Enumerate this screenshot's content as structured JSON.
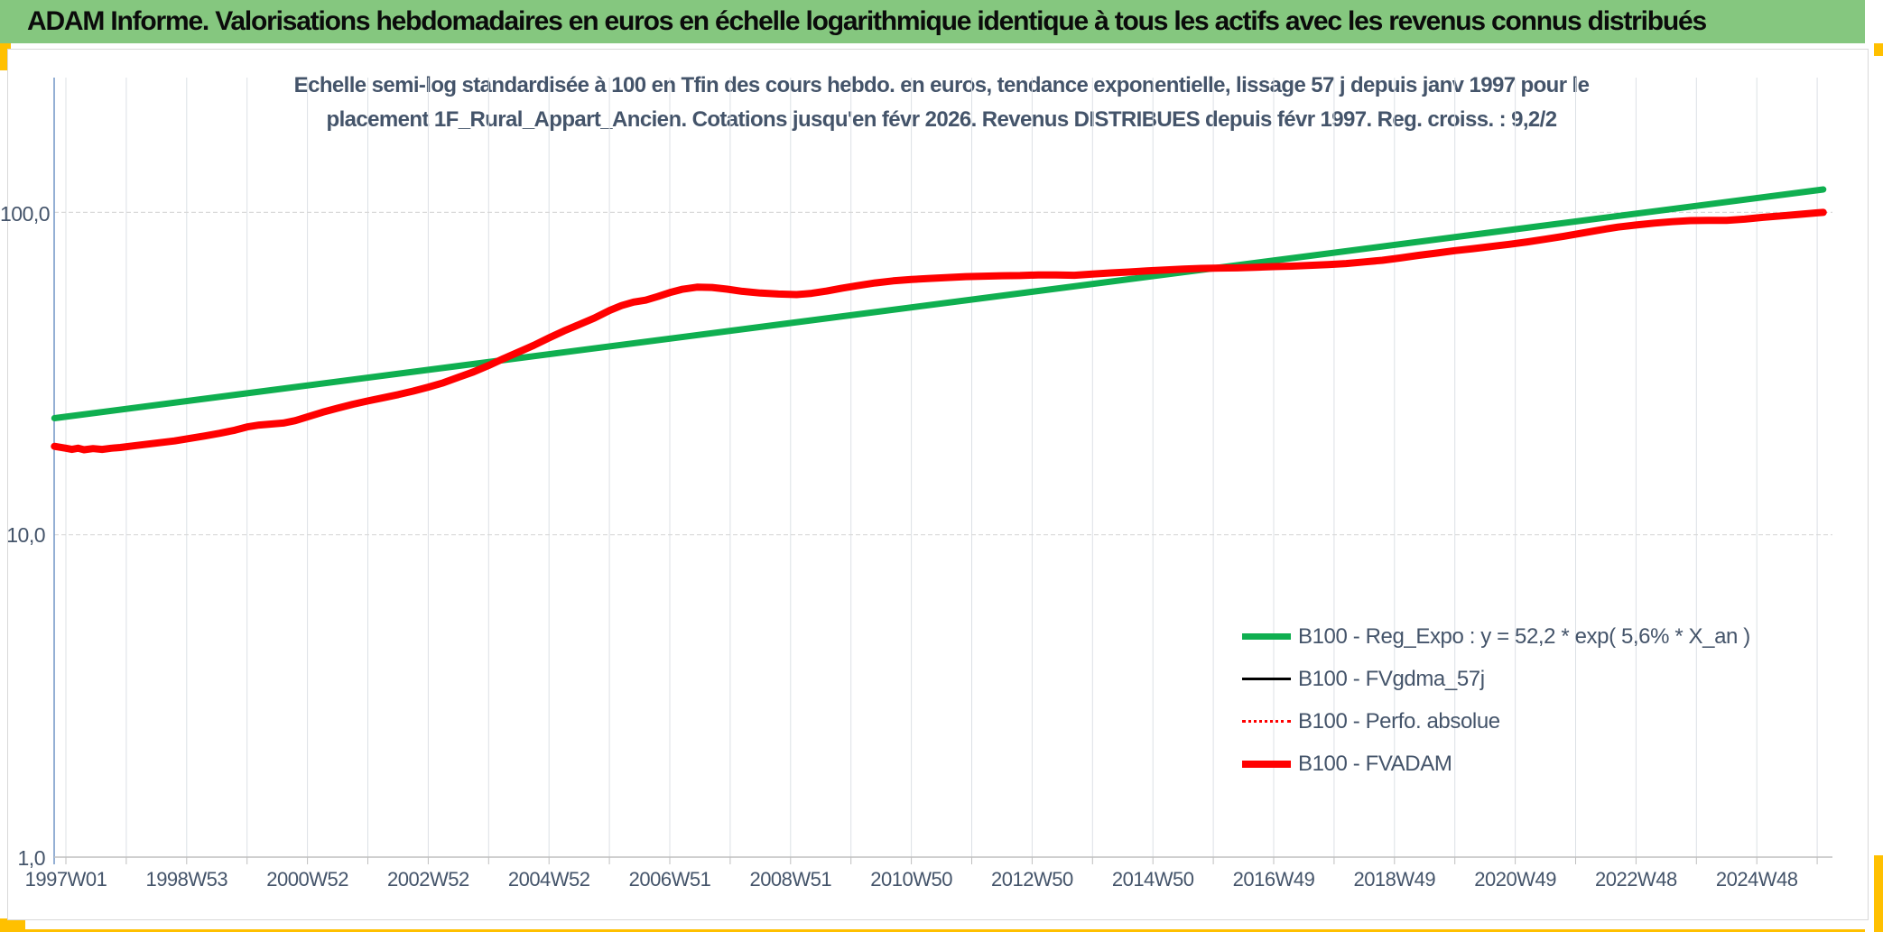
{
  "header": {
    "title": "ADAM Informe. Valorisations hebdomadaires en euros en échelle logarithmique identique à tous les actifs avec les revenus connus distribués"
  },
  "accents": {
    "header_green": "#85C77F",
    "corner_orange": "#FFC000",
    "text_blue_grey": "#44546A"
  },
  "chart": {
    "title_line1": "Echelle semi-log standardisée à 100 en Tfin des cours hebdo. en euros, tendance exponentielle, lissage 57 j depuis janv 1997 pour le",
    "title_line2": "placement 1F_Rural_Appart_Ancien. Cotations jusqu'en févr 2026. Revenus DISTRIBUES depuis févr 1997. Reg. croiss. : 9,2/2"
  },
  "chart_data": {
    "type": "line",
    "y_scale": "log",
    "ylim": [
      1.0,
      250
    ],
    "x_span_years": [
      1997.0,
      2026.2
    ],
    "grid": {
      "vertical_every_years": 1,
      "horizontal_at": [
        100,
        10
      ]
    },
    "legend_position": "inside-lower-right",
    "y_ticks": [
      {
        "label": "100,0",
        "value": 100
      },
      {
        "label": "10,0",
        "value": 10
      },
      {
        "label": "1,0",
        "value": 1
      }
    ],
    "x_tick_labels": [
      "1997W01",
      "1998W53",
      "2000W52",
      "2002W52",
      "2004W52",
      "2006W51",
      "2008W51",
      "2010W50",
      "2012W50",
      "2014W50",
      "2016W49",
      "2018W49",
      "2020W49",
      "2022W48",
      "2024W48"
    ],
    "legend": [
      {
        "label": "B100 - Reg_Expo : y = 52,2 * exp( 5,6% * X_an )",
        "color": "#0FAF50",
        "thickness": 7,
        "style": "solid"
      },
      {
        "label": "B100 - FVgdma_57j",
        "color": "#000000",
        "thickness": 3,
        "style": "solid"
      },
      {
        "label": "B100 - Perfo. absolue",
        "color": "#FF0000",
        "thickness": 3,
        "style": "dotted"
      },
      {
        "label": "B100 - FVADAM",
        "color": "#FF0000",
        "thickness": 8,
        "style": "solid"
      }
    ],
    "series": [
      {
        "name": "B100 - Reg_Expo",
        "color": "#0FAF50",
        "width": 7,
        "style": "solid",
        "formula": "y = 52,2 * exp( 5,6% * X_an )",
        "points": [
          [
            1996.81,
            23.0
          ],
          [
            2026.1,
            117.8
          ]
        ]
      },
      {
        "name": "B100 - FVgdma_57j",
        "color": "#000000",
        "width": 2.5,
        "style": "solid",
        "same_as": "B100 - FVADAM",
        "note": "hidden beneath FVADAM"
      },
      {
        "name": "B100 - Perfo. absolue",
        "color": "#FF0000",
        "width": 2,
        "style": "dotted",
        "same_as": "B100 - FVADAM",
        "note": "hidden beneath FVADAM"
      },
      {
        "name": "B100 - FVADAM",
        "color": "#FF0000",
        "width": 8,
        "style": "solid",
        "points": [
          [
            1996.81,
            18.8
          ],
          [
            1997.0,
            18.55
          ],
          [
            1997.1,
            18.4
          ],
          [
            1997.2,
            18.55
          ],
          [
            1997.3,
            18.35
          ],
          [
            1997.45,
            18.5
          ],
          [
            1997.6,
            18.4
          ],
          [
            1997.75,
            18.55
          ],
          [
            1997.9,
            18.65
          ],
          [
            1998.1,
            18.85
          ],
          [
            1998.3,
            19.05
          ],
          [
            1998.55,
            19.3
          ],
          [
            1998.8,
            19.55
          ],
          [
            1999.05,
            19.9
          ],
          [
            1999.3,
            20.25
          ],
          [
            1999.55,
            20.65
          ],
          [
            1999.8,
            21.1
          ],
          [
            2000.0,
            21.6
          ],
          [
            2000.2,
            21.9
          ],
          [
            2000.4,
            22.05
          ],
          [
            2000.6,
            22.2
          ],
          [
            2000.8,
            22.6
          ],
          [
            2001.0,
            23.2
          ],
          [
            2001.25,
            24.0
          ],
          [
            2001.5,
            24.7
          ],
          [
            2001.75,
            25.4
          ],
          [
            2002.0,
            26.0
          ],
          [
            2002.25,
            26.6
          ],
          [
            2002.5,
            27.2
          ],
          [
            2002.75,
            27.9
          ],
          [
            2003.0,
            28.7
          ],
          [
            2003.25,
            29.6
          ],
          [
            2003.5,
            30.8
          ],
          [
            2003.75,
            32.0
          ],
          [
            2004.0,
            33.5
          ],
          [
            2004.25,
            35.2
          ],
          [
            2004.5,
            36.9
          ],
          [
            2004.75,
            38.7
          ],
          [
            2005.0,
            40.8
          ],
          [
            2005.25,
            42.9
          ],
          [
            2005.5,
            44.9
          ],
          [
            2005.75,
            47.0
          ],
          [
            2006.0,
            49.6
          ],
          [
            2006.2,
            51.4
          ],
          [
            2006.4,
            52.7
          ],
          [
            2006.6,
            53.4
          ],
          [
            2006.8,
            54.8
          ],
          [
            2007.0,
            56.4
          ],
          [
            2007.2,
            57.7
          ],
          [
            2007.45,
            58.6
          ],
          [
            2007.7,
            58.5
          ],
          [
            2007.95,
            57.8
          ],
          [
            2008.2,
            56.9
          ],
          [
            2008.5,
            56.2
          ],
          [
            2008.8,
            55.8
          ],
          [
            2009.1,
            55.6
          ],
          [
            2009.35,
            56.1
          ],
          [
            2009.6,
            57.0
          ],
          [
            2009.85,
            58.2
          ],
          [
            2010.1,
            59.2
          ],
          [
            2010.4,
            60.4
          ],
          [
            2010.7,
            61.3
          ],
          [
            2011.0,
            61.9
          ],
          [
            2011.3,
            62.4
          ],
          [
            2011.6,
            62.8
          ],
          [
            2011.9,
            63.2
          ],
          [
            2012.2,
            63.4
          ],
          [
            2012.5,
            63.6
          ],
          [
            2012.8,
            63.7
          ],
          [
            2013.1,
            64.0
          ],
          [
            2013.4,
            64.0
          ],
          [
            2013.7,
            63.8
          ],
          [
            2014.0,
            64.4
          ],
          [
            2014.3,
            64.9
          ],
          [
            2014.6,
            65.3
          ],
          [
            2014.9,
            65.8
          ],
          [
            2015.2,
            66.3
          ],
          [
            2015.5,
            66.7
          ],
          [
            2015.8,
            67.0
          ],
          [
            2016.1,
            67.2
          ],
          [
            2016.4,
            67.3
          ],
          [
            2016.7,
            67.6
          ],
          [
            2017.0,
            67.9
          ],
          [
            2017.3,
            68.1
          ],
          [
            2017.6,
            68.5
          ],
          [
            2017.9,
            68.9
          ],
          [
            2018.2,
            69.4
          ],
          [
            2018.5,
            70.2
          ],
          [
            2018.8,
            71.0
          ],
          [
            2019.1,
            72.2
          ],
          [
            2019.4,
            73.6
          ],
          [
            2019.7,
            74.8
          ],
          [
            2020.0,
            76.1
          ],
          [
            2020.3,
            77.2
          ],
          [
            2020.6,
            78.4
          ],
          [
            2020.9,
            79.6
          ],
          [
            2021.2,
            81.0
          ],
          [
            2021.5,
            82.6
          ],
          [
            2021.8,
            84.3
          ],
          [
            2022.1,
            86.2
          ],
          [
            2022.4,
            88.2
          ],
          [
            2022.7,
            90.0
          ],
          [
            2023.0,
            91.4
          ],
          [
            2023.3,
            92.6
          ],
          [
            2023.6,
            93.6
          ],
          [
            2023.9,
            94.3
          ],
          [
            2024.2,
            94.4
          ],
          [
            2024.5,
            94.5
          ],
          [
            2024.8,
            95.3
          ],
          [
            2025.1,
            96.5
          ],
          [
            2025.4,
            97.5
          ],
          [
            2025.7,
            98.6
          ],
          [
            2026.0,
            99.7
          ],
          [
            2026.1,
            100.0
          ]
        ]
      }
    ]
  }
}
